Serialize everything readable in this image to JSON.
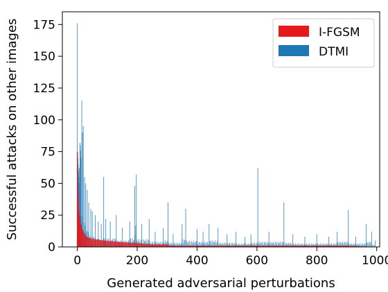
{
  "chart_data": {
    "type": "bar",
    "xlabel": "Generated adversarial perturbations",
    "ylabel": "Successful attacks on other images",
    "xlim": [
      -50,
      1010
    ],
    "ylim": [
      0,
      185
    ],
    "xticks": [
      0,
      200,
      400,
      600,
      800,
      1000
    ],
    "yticks": [
      0,
      25,
      50,
      75,
      100,
      125,
      150,
      175
    ],
    "legend_position": "top-right",
    "grid": false,
    "series": [
      {
        "name": "I-FGSM",
        "color": "#e41a1c",
        "description_shape": "sorted decreasing",
        "points": [
          [
            0,
            75
          ],
          [
            1,
            61
          ],
          [
            2,
            47
          ],
          [
            3,
            40
          ],
          [
            4,
            34
          ],
          [
            5,
            30
          ],
          [
            7,
            25
          ],
          [
            9,
            21
          ],
          [
            12,
            18
          ],
          [
            15,
            15
          ],
          [
            20,
            12
          ],
          [
            25,
            10
          ],
          [
            30,
            8
          ],
          [
            40,
            7
          ],
          [
            60,
            6
          ],
          [
            90,
            5
          ],
          [
            140,
            4
          ],
          [
            200,
            3
          ],
          [
            250,
            2
          ],
          [
            300,
            2
          ],
          [
            310,
            1
          ],
          [
            400,
            1
          ],
          [
            500,
            1
          ],
          [
            600,
            1
          ],
          [
            700,
            1
          ],
          [
            800,
            1
          ],
          [
            900,
            1
          ],
          [
            1000,
            0
          ]
        ]
      },
      {
        "name": "DTMI",
        "color": "#1f77b4",
        "points": [
          [
            0,
            176
          ],
          [
            1,
            75
          ],
          [
            2,
            70
          ],
          [
            3,
            65
          ],
          [
            4,
            60
          ],
          [
            5,
            55
          ],
          [
            6,
            50
          ],
          [
            7,
            62
          ],
          [
            9,
            82
          ],
          [
            10,
            80
          ],
          [
            11,
            76
          ],
          [
            12,
            70
          ],
          [
            15,
            115
          ],
          [
            17,
            90
          ],
          [
            20,
            95
          ],
          [
            24,
            55
          ],
          [
            28,
            50
          ],
          [
            33,
            45
          ],
          [
            38,
            35
          ],
          [
            45,
            30
          ],
          [
            50,
            28
          ],
          [
            60,
            25
          ],
          [
            70,
            20
          ],
          [
            80,
            18
          ],
          [
            88,
            55
          ],
          [
            95,
            22
          ],
          [
            110,
            20
          ],
          [
            130,
            25
          ],
          [
            150,
            15
          ],
          [
            175,
            20
          ],
          [
            192,
            48
          ],
          [
            197,
            57
          ],
          [
            215,
            18
          ],
          [
            240,
            22
          ],
          [
            260,
            12
          ],
          [
            287,
            15
          ],
          [
            303,
            35
          ],
          [
            320,
            10
          ],
          [
            350,
            18
          ],
          [
            362,
            30
          ],
          [
            400,
            14
          ],
          [
            420,
            12
          ],
          [
            440,
            18
          ],
          [
            470,
            15
          ],
          [
            500,
            10
          ],
          [
            530,
            12
          ],
          [
            560,
            8
          ],
          [
            580,
            10
          ],
          [
            603,
            62
          ],
          [
            640,
            12
          ],
          [
            690,
            35
          ],
          [
            720,
            10
          ],
          [
            760,
            8
          ],
          [
            800,
            10
          ],
          [
            840,
            8
          ],
          [
            868,
            12
          ],
          [
            905,
            29
          ],
          [
            930,
            8
          ],
          [
            965,
            18
          ],
          [
            983,
            12
          ],
          [
            995,
            5
          ]
        ]
      }
    ]
  }
}
